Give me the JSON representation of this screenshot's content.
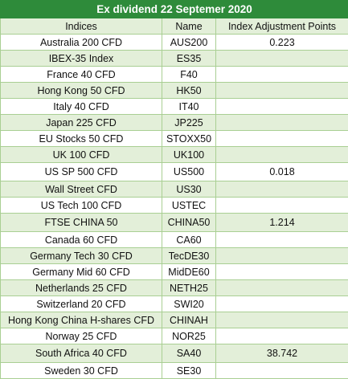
{
  "title": "Ex dividend 22 Septemer 2020",
  "headers": {
    "indices": "Indices",
    "name": "Name",
    "points": "Index Adjustment Points"
  },
  "rows": [
    {
      "index": "Australia 200 CFD",
      "name": "AUS200",
      "points": "0.223"
    },
    {
      "index": "IBEX-35 Index",
      "name": "ES35",
      "points": ""
    },
    {
      "index": "France 40 CFD",
      "name": "F40",
      "points": ""
    },
    {
      "index": "Hong Kong 50 CFD",
      "name": "HK50",
      "points": ""
    },
    {
      "index": "Italy 40 CFD",
      "name": "IT40",
      "points": ""
    },
    {
      "index": "Japan 225 CFD",
      "name": "JP225",
      "points": ""
    },
    {
      "index": "EU Stocks 50 CFD",
      "name": "STOXX50",
      "points": ""
    },
    {
      "index": "UK 100 CFD",
      "name": "UK100",
      "points": ""
    },
    {
      "index": "US SP 500 CFD",
      "name": "US500",
      "points": "0.018"
    },
    {
      "index": "Wall Street CFD",
      "name": "US30",
      "points": ""
    },
    {
      "index": "US Tech 100 CFD",
      "name": "USTEC",
      "points": ""
    },
    {
      "index": "FTSE CHINA 50",
      "name": "CHINA50",
      "points": "1.214"
    },
    {
      "index": "Canada 60 CFD",
      "name": "CA60",
      "points": ""
    },
    {
      "index": "Germany Tech 30 CFD",
      "name": "TecDE30",
      "points": ""
    },
    {
      "index": "Germany Mid 60 CFD",
      "name": "MidDE60",
      "points": ""
    },
    {
      "index": "Netherlands 25 CFD",
      "name": "NETH25",
      "points": ""
    },
    {
      "index": "Switzerland 20 CFD",
      "name": "SWI20",
      "points": ""
    },
    {
      "index": "Hong Kong China H-shares CFD",
      "name": "CHINAH",
      "points": ""
    },
    {
      "index": "Norway 25 CFD",
      "name": "NOR25",
      "points": ""
    },
    {
      "index": "South Africa 40 CFD",
      "name": "SA40",
      "points": "38.742"
    },
    {
      "index": "Sweden 30 CFD",
      "name": "SE30",
      "points": ""
    }
  ]
}
